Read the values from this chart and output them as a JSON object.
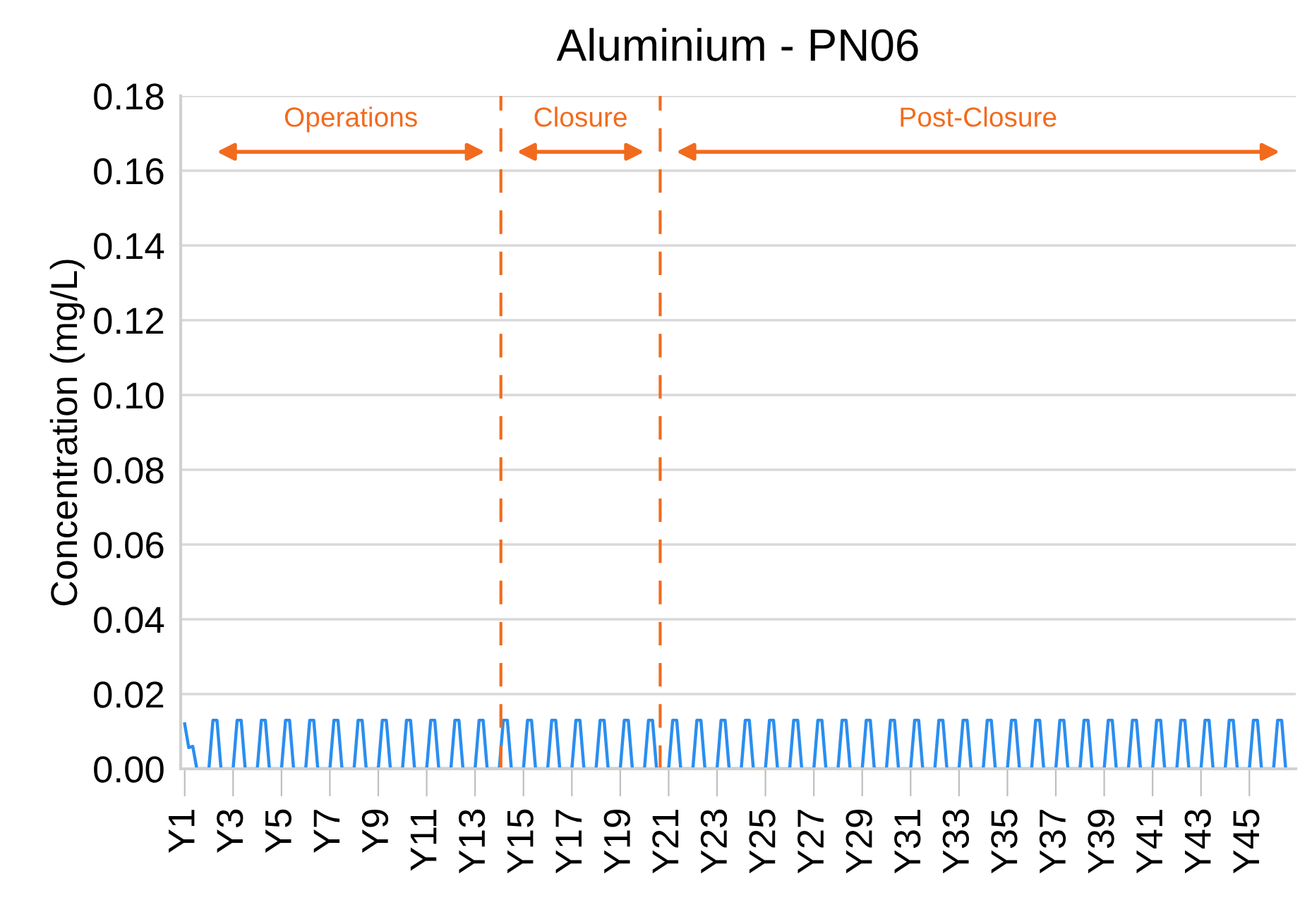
{
  "chart_data": {
    "type": "line",
    "title": "Aluminium - PN06",
    "ylabel": "Concentration (mg/L)",
    "categories": [
      "Y1",
      null,
      null,
      null,
      null,
      null,
      null,
      null,
      null,
      null,
      null,
      null,
      "Y3",
      null,
      null,
      null,
      null,
      null,
      null,
      null,
      null,
      null,
      null,
      null,
      "Y5",
      null,
      null,
      null,
      null,
      null,
      null,
      null,
      null,
      null,
      null,
      null,
      "Y7",
      null,
      null,
      null,
      null,
      null,
      null,
      null,
      null,
      null,
      null,
      null,
      "Y9",
      null,
      null,
      null,
      null,
      null,
      null,
      null,
      null,
      null,
      null,
      null,
      "Y11",
      null,
      null,
      null,
      null,
      null,
      null,
      null,
      null,
      null,
      null,
      null,
      "Y13",
      null,
      null,
      null,
      null,
      null,
      null,
      null,
      null,
      null,
      null,
      null,
      "Y15",
      null,
      null,
      null,
      null,
      null,
      null,
      null,
      null,
      null,
      null,
      null,
      "Y17",
      null,
      null,
      null,
      null,
      null,
      null,
      null,
      null,
      null,
      null,
      null,
      "Y19",
      null,
      null,
      null,
      null,
      null,
      null,
      null,
      null,
      null,
      null,
      null,
      "Y21",
      null,
      null,
      null,
      null,
      null,
      null,
      null,
      null,
      null,
      null,
      null,
      "Y23",
      null,
      null,
      null,
      null,
      null,
      null,
      null,
      null,
      null,
      null,
      null,
      "Y25",
      null,
      null,
      null,
      null,
      null,
      null,
      null,
      null,
      null,
      null,
      null,
      "Y27",
      null,
      null,
      null,
      null,
      null,
      null,
      null,
      null,
      null,
      null,
      null,
      "Y29",
      null,
      null,
      null,
      null,
      null,
      null,
      null,
      null,
      null,
      null,
      null,
      "Y31",
      null,
      null,
      null,
      null,
      null,
      null,
      null,
      null,
      null,
      null,
      null,
      "Y33",
      null,
      null,
      null,
      null,
      null,
      null,
      null,
      null,
      null,
      null,
      null,
      "Y35",
      null,
      null,
      null,
      null,
      null,
      null,
      null,
      null,
      null,
      null,
      null,
      "Y37",
      null,
      null,
      null,
      null,
      null,
      null,
      null,
      null,
      null,
      null,
      null,
      "Y39",
      null,
      null,
      null,
      null,
      null,
      null,
      null,
      null,
      null,
      null,
      null,
      "Y41",
      null,
      null,
      null,
      null,
      null,
      null,
      null,
      null,
      null,
      null,
      null,
      "Y43",
      null,
      null,
      null,
      null,
      null,
      null,
      null,
      null,
      null,
      null,
      null,
      "Y45",
      null,
      null,
      null,
      null,
      null,
      null,
      null,
      null,
      null
    ],
    "series": [
      {
        "color": "#2b8ef0",
        "values": [
          0.012,
          0.0057,
          0.006,
          0,
          0,
          0,
          0,
          0.013,
          0.013,
          0,
          0,
          0,
          0,
          0.013,
          0.013,
          0,
          0,
          0,
          0,
          0.013,
          0.013,
          0,
          0,
          0,
          0,
          0.013,
          0.013,
          0,
          0,
          0,
          0,
          0.013,
          0.013,
          0,
          0,
          0,
          0,
          0.013,
          0.013,
          0,
          0,
          0,
          0,
          0.013,
          0.013,
          0,
          0,
          0,
          0,
          0.013,
          0.013,
          0,
          0,
          0,
          0,
          0.013,
          0.013,
          0,
          0,
          0,
          0,
          0.013,
          0.013,
          0,
          0,
          0,
          0,
          0.013,
          0.013,
          0,
          0,
          0,
          0,
          0.013,
          0.013,
          0,
          0,
          0,
          0,
          0.013,
          0.013,
          0,
          0,
          0,
          0,
          0.013,
          0.013,
          0,
          0,
          0,
          0,
          0.013,
          0.013,
          0,
          0,
          0,
          0,
          0.013,
          0.013,
          0,
          0,
          0,
          0,
          0.013,
          0.013,
          0,
          0,
          0,
          0,
          0.013,
          0.013,
          0,
          0,
          0,
          0,
          0.013,
          0.013,
          0,
          0,
          0,
          0,
          0.013,
          0.013,
          0,
          0,
          0,
          0,
          0.013,
          0.013,
          0,
          0,
          0,
          0,
          0.013,
          0.013,
          0,
          0,
          0,
          0,
          0.013,
          0.013,
          0,
          0,
          0,
          0,
          0.013,
          0.013,
          0,
          0,
          0,
          0,
          0.013,
          0.013,
          0,
          0,
          0,
          0,
          0.013,
          0.013,
          0,
          0,
          0,
          0,
          0.013,
          0.013,
          0,
          0,
          0,
          0,
          0.013,
          0.013,
          0,
          0,
          0,
          0,
          0.013,
          0.013,
          0,
          0,
          0,
          0,
          0.013,
          0.013,
          0,
          0,
          0,
          0,
          0.013,
          0.013,
          0,
          0,
          0,
          0,
          0.013,
          0.013,
          0,
          0,
          0,
          0,
          0.013,
          0.013,
          0,
          0,
          0,
          0,
          0.013,
          0.013,
          0,
          0,
          0,
          0,
          0.013,
          0.013,
          0,
          0,
          0,
          0,
          0.013,
          0.013,
          0,
          0,
          0,
          0,
          0.013,
          0.013,
          0,
          0,
          0,
          0,
          0.013,
          0.013,
          0,
          0,
          0,
          0,
          0.013,
          0.013,
          0,
          0,
          0,
          0,
          0.013,
          0.013,
          0,
          0,
          0,
          0,
          0.013,
          0.013,
          0,
          0,
          0,
          0,
          0.013,
          0.013,
          0,
          0,
          0,
          0,
          0.013,
          0.013,
          0,
          0,
          0,
          0,
          0.013,
          0.013,
          0,
          0,
          0,
          0,
          0.013,
          0.013,
          0
        ]
      }
    ],
    "ylim": [
      0,
      0.18
    ],
    "yticks": [
      {
        "value": 0,
        "label": "0.00"
      },
      {
        "value": 0.02,
        "label": "0.02"
      },
      {
        "value": 0.04,
        "label": "0.04"
      },
      {
        "value": 0.06,
        "label": "0.06"
      },
      {
        "value": 0.08,
        "label": "0.08"
      },
      {
        "value": 0.1,
        "label": "0.10"
      },
      {
        "value": 0.12,
        "label": "0.12"
      },
      {
        "value": 0.14,
        "label": "0.14"
      },
      {
        "value": 0.16,
        "label": "0.16"
      },
      {
        "value": 0.18,
        "label": "0.18"
      }
    ],
    "grid": "y",
    "marker": "none",
    "line_style": "solid",
    "annotations": [
      "Operations",
      "Closure",
      "Post-Closure"
    ]
  }
}
